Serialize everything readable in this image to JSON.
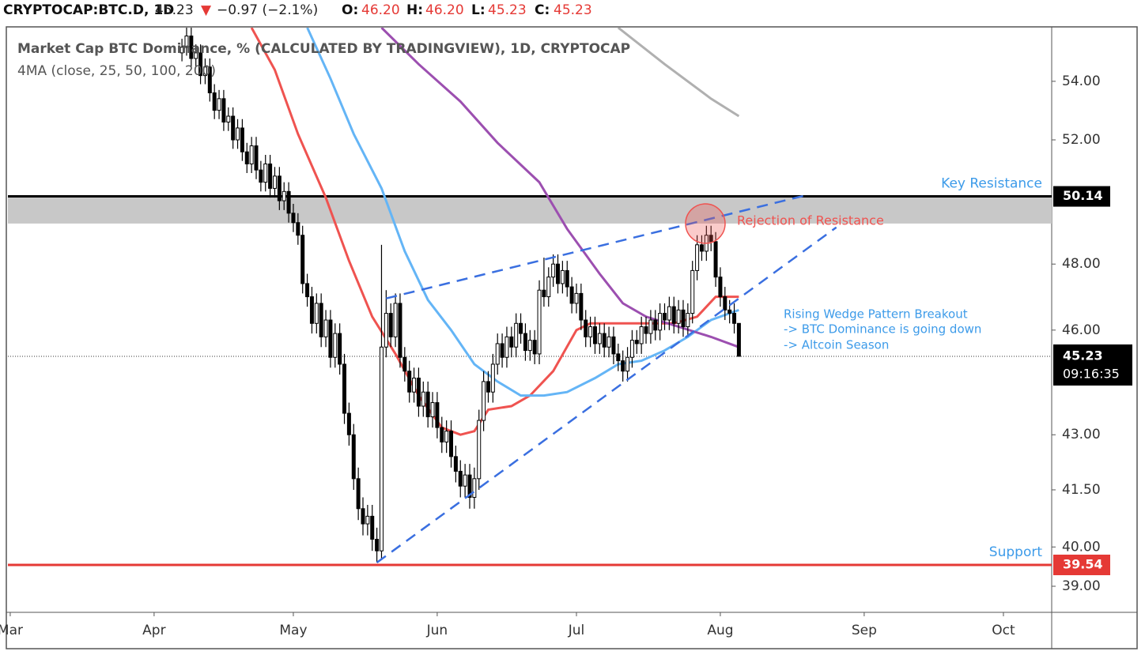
{
  "header": {
    "symbol": "CRYPTOCAP:BTC.D, 1D",
    "last": "45.23",
    "change": "−0.97 (−2.1%)",
    "open_label": "O:",
    "open": "46.20",
    "high_label": "H:",
    "high": "46.20",
    "low_label": "L:",
    "low": "45.23",
    "close_label": "C:",
    "close": "45.23"
  },
  "chart_data": {
    "type": "candlestick",
    "title": "Market Cap BTC Dominance, % (CALCULATED BY TRADINGVIEW), 1D, CRYPTOCAP",
    "subtitle": "4MA (close, 25, 50, 100, 200)",
    "log_scale": true,
    "xlim": [
      -0.5,
      224.4
    ],
    "ylim": [
      38.35,
      55.9
    ],
    "xticks": [
      {
        "value": 0,
        "label": "Mar"
      },
      {
        "value": 31,
        "label": "Apr"
      },
      {
        "value": 61,
        "label": "May"
      },
      {
        "value": 92,
        "label": "Jun"
      },
      {
        "value": 122,
        "label": "Jul"
      },
      {
        "value": 153,
        "label": "Aug"
      },
      {
        "value": 184,
        "label": "Sep"
      },
      {
        "value": 214,
        "label": "Oct"
      }
    ],
    "yticks": [
      {
        "value": 39,
        "label": "39.00"
      },
      {
        "value": 40,
        "label": "40.00"
      },
      {
        "value": 41.5,
        "label": "41.50"
      },
      {
        "value": 43,
        "label": "43.00"
      },
      {
        "value": 46,
        "label": "46.00"
      },
      {
        "value": 48,
        "label": "48.00"
      },
      {
        "value": 52,
        "label": "52.00"
      },
      {
        "value": 54,
        "label": "54.00"
      }
    ],
    "up_color": "#ffffff",
    "down_color": "#000000",
    "x": [
      37,
      38,
      39,
      40,
      41,
      42,
      43,
      44,
      45,
      46,
      47,
      48,
      49,
      50,
      51,
      52,
      53,
      54,
      55,
      56,
      57,
      58,
      59,
      60,
      61,
      62,
      63,
      64,
      65,
      66,
      67,
      68,
      69,
      70,
      71,
      72,
      73,
      74,
      75,
      76,
      77,
      78,
      79,
      80,
      81,
      82,
      83,
      84,
      85,
      86,
      87,
      88,
      89,
      90,
      91,
      92,
      93,
      94,
      95,
      96,
      97,
      98,
      99,
      100,
      101,
      102,
      103,
      104,
      105,
      106,
      107,
      108,
      109,
      110,
      111,
      112,
      113,
      114,
      115,
      116,
      117,
      118,
      119,
      120,
      121,
      122,
      123,
      124,
      125,
      126,
      127,
      128,
      129,
      130,
      131,
      132,
      133,
      134,
      135,
      136,
      137,
      138,
      139,
      140,
      141,
      142,
      143,
      144,
      145,
      146,
      147,
      148,
      149,
      150,
      151,
      152,
      153,
      154,
      155,
      156,
      157
    ],
    "open": [
      55.0,
      55.2,
      55.6,
      54.8,
      55.0,
      54.2,
      54.5,
      53.6,
      53.0,
      53.4,
      52.6,
      52.8,
      52.0,
      52.4,
      51.6,
      51.2,
      51.8,
      51.0,
      50.6,
      51.2,
      50.4,
      50.8,
      50.0,
      50.3,
      49.6,
      49.3,
      48.9,
      47.4,
      47.0,
      46.2,
      46.8,
      45.8,
      46.3,
      45.2,
      45.9,
      45.0,
      43.6,
      43.0,
      41.8,
      41.0,
      40.6,
      40.8,
      40.2,
      39.9,
      45.5,
      46.5,
      45.8,
      46.8,
      45.2,
      44.8,
      44.2,
      44.6,
      43.8,
      44.2,
      43.5,
      43.9,
      43.2,
      42.8,
      43.1,
      42.4,
      42.0,
      41.6,
      41.9,
      41.3,
      41.8,
      43.4,
      44.5,
      44.2,
      45.0,
      45.6,
      45.2,
      45.8,
      45.5,
      46.2,
      45.9,
      45.4,
      45.7,
      45.3,
      47.2,
      47.0,
      47.6,
      48.0,
      47.4,
      47.8,
      47.3,
      46.8,
      47.1,
      46.3,
      45.8,
      46.1,
      45.6,
      45.9,
      45.5,
      45.8,
      45.3,
      45.1,
      44.8,
      45.2,
      45.7,
      45.6,
      46.1,
      45.9,
      46.3,
      46.0,
      46.5,
      46.3,
      46.7,
      46.2,
      46.6,
      46.1,
      46.5,
      47.8,
      48.6,
      48.4,
      48.9,
      48.7,
      47.6,
      47.0,
      46.6,
      46.5,
      46.2
    ],
    "high": [
      55.5,
      55.9,
      55.9,
      55.3,
      55.3,
      54.8,
      54.8,
      53.9,
      53.7,
      53.7,
      53.1,
      53.1,
      52.7,
      52.7,
      51.9,
      52.1,
      52.1,
      51.3,
      51.5,
      51.5,
      51.1,
      51.1,
      50.6,
      50.6,
      49.9,
      49.6,
      49.2,
      47.7,
      47.3,
      47.1,
      47.1,
      46.6,
      46.6,
      46.2,
      46.2,
      45.3,
      43.9,
      43.3,
      42.1,
      41.3,
      41.1,
      41.1,
      40.5,
      48.6,
      47.2,
      46.8,
      47.1,
      47.1,
      45.5,
      45.1,
      44.9,
      44.9,
      44.5,
      44.5,
      44.2,
      44.2,
      43.5,
      43.4,
      43.4,
      42.7,
      42.3,
      42.2,
      42.2,
      42.1,
      43.7,
      44.8,
      44.8,
      45.3,
      45.9,
      45.9,
      46.1,
      46.1,
      46.5,
      46.5,
      46.2,
      46.0,
      46.0,
      47.5,
      48.2,
      47.9,
      48.3,
      48.3,
      48.1,
      48.1,
      47.6,
      47.4,
      47.4,
      46.6,
      46.4,
      46.4,
      46.2,
      46.2,
      46.1,
      46.1,
      45.6,
      45.4,
      45.5,
      46.0,
      46.0,
      46.4,
      46.4,
      46.6,
      46.6,
      46.8,
      46.8,
      47.0,
      47.0,
      46.9,
      46.9,
      46.8,
      48.1,
      48.9,
      48.9,
      49.2,
      49.2,
      49.0,
      47.9,
      47.3,
      46.9,
      46.8,
      46.2
    ],
    "low": [
      54.7,
      54.9,
      54.5,
      54.5,
      53.9,
      53.9,
      53.3,
      52.7,
      52.7,
      52.3,
      52.3,
      51.7,
      51.7,
      51.3,
      50.9,
      50.9,
      50.7,
      50.3,
      50.3,
      50.1,
      50.1,
      49.7,
      49.7,
      49.3,
      49.0,
      48.6,
      47.1,
      46.7,
      45.9,
      45.9,
      45.5,
      45.5,
      44.9,
      44.9,
      44.7,
      43.3,
      42.7,
      41.5,
      40.7,
      40.3,
      40.3,
      39.9,
      39.6,
      39.7,
      45.2,
      45.5,
      45.5,
      44.9,
      44.5,
      43.9,
      43.9,
      43.5,
      43.5,
      43.2,
      43.2,
      42.9,
      42.5,
      42.5,
      42.1,
      41.7,
      41.3,
      41.3,
      41.0,
      41.0,
      41.5,
      43.1,
      43.9,
      43.9,
      44.7,
      44.9,
      44.9,
      45.2,
      45.2,
      45.6,
      45.1,
      45.1,
      45.0,
      45.0,
      46.7,
      46.7,
      47.3,
      47.1,
      47.1,
      47.0,
      46.5,
      46.5,
      46.0,
      45.5,
      45.5,
      45.3,
      45.3,
      45.2,
      45.2,
      45.0,
      44.8,
      44.5,
      44.5,
      44.9,
      45.3,
      45.3,
      45.6,
      45.6,
      45.7,
      45.7,
      46.0,
      46.0,
      45.9,
      45.9,
      45.8,
      45.8,
      46.2,
      47.5,
      48.1,
      48.1,
      48.4,
      47.3,
      46.7,
      46.3,
      46.2,
      45.9,
      45.23
    ],
    "close": [
      55.2,
      55.6,
      54.8,
      55.0,
      54.2,
      54.5,
      53.6,
      53.0,
      53.4,
      52.6,
      52.8,
      52.0,
      52.4,
      51.6,
      51.2,
      51.8,
      51.0,
      50.6,
      51.2,
      50.4,
      50.8,
      50.0,
      50.3,
      49.6,
      49.3,
      48.9,
      47.4,
      47.0,
      46.2,
      46.8,
      45.8,
      46.3,
      45.2,
      45.9,
      45.0,
      43.6,
      43.0,
      41.8,
      41.0,
      40.6,
      40.8,
      40.2,
      39.9,
      45.5,
      46.5,
      45.8,
      46.8,
      45.2,
      44.8,
      44.2,
      44.6,
      43.8,
      44.2,
      43.5,
      43.9,
      43.2,
      42.8,
      43.1,
      42.4,
      42.0,
      41.6,
      41.9,
      41.3,
      41.8,
      43.4,
      44.5,
      44.2,
      45.0,
      45.6,
      45.2,
      45.8,
      45.5,
      46.2,
      45.9,
      45.4,
      45.7,
      45.3,
      47.2,
      47.0,
      47.6,
      48.0,
      47.4,
      47.8,
      47.3,
      46.8,
      47.1,
      46.3,
      45.8,
      46.1,
      45.6,
      45.9,
      45.5,
      45.8,
      45.3,
      45.1,
      44.8,
      45.2,
      45.7,
      45.6,
      46.1,
      45.9,
      46.3,
      46.0,
      46.5,
      46.3,
      46.7,
      46.2,
      46.6,
      46.1,
      46.5,
      47.8,
      48.6,
      48.4,
      48.9,
      48.7,
      47.6,
      47.0,
      46.6,
      46.5,
      46.2,
      45.23
    ],
    "moving_averages": [
      {
        "color": "#ef5350",
        "x": [
          52,
          57,
          62,
          68,
          73,
          78,
          83,
          88,
          93,
          97,
          100,
          103,
          108,
          112,
          117,
          122,
          125,
          131,
          137,
          143,
          148,
          152,
          157
        ],
        "values": [
          55.9,
          54.4,
          52.2,
          50.1,
          48.1,
          46.4,
          45.3,
          44.1,
          43.2,
          43.0,
          43.1,
          43.7,
          43.8,
          44.1,
          44.8,
          46.0,
          46.2,
          46.2,
          46.2,
          46.2,
          46.4,
          47.0,
          47.0
        ]
      },
      {
        "color": "#64b5f6",
        "x": [
          64,
          69,
          74,
          80,
          85,
          90,
          95,
          100,
          105,
          110,
          115,
          120,
          126,
          131,
          136,
          141,
          146,
          151,
          157
        ],
        "values": [
          55.9,
          54.1,
          52.2,
          50.4,
          48.4,
          46.9,
          46.0,
          45.0,
          44.5,
          44.1,
          44.1,
          44.2,
          44.6,
          45.0,
          45.1,
          45.4,
          45.8,
          46.3,
          46.6
        ]
      },
      {
        "color": "#9c4fb0",
        "x": [
          80,
          88,
          97,
          105,
          114,
          120,
          127,
          132,
          137,
          144,
          151,
          157
        ],
        "values": [
          55.9,
          54.6,
          53.3,
          51.9,
          50.6,
          49.1,
          47.7,
          46.8,
          46.4,
          46.1,
          45.8,
          45.5
        ]
      },
      {
        "color": "#b0b0b0",
        "x": [
          131,
          141,
          151,
          157
        ],
        "values": [
          55.9,
          54.6,
          53.4,
          52.8
        ]
      }
    ],
    "zone": {
      "from": 49.27,
      "to": 50.14,
      "color": "#c8c8c8"
    },
    "levels": [
      {
        "value": 50.14,
        "color": "#000000",
        "label": "Key Resistance"
      },
      {
        "value": 39.54,
        "color": "#e53935",
        "label": "Support"
      }
    ],
    "trendlines": {
      "color": "#3a6fe0",
      "lines": [
        {
          "x": [
            81,
            171
          ],
          "values": [
            46.95,
            50.16
          ]
        },
        {
          "x": [
            79,
            178
          ],
          "values": [
            39.6,
            49.15
          ]
        }
      ]
    },
    "last_price": 45.23,
    "countdown": "09:16:35",
    "annotations": {
      "rejection": "Rejection of Resistance",
      "wedge": [
        "Rising Wedge Pattern Breakout",
        "-> BTC Dominance is going down",
        "-> Altcoin Season"
      ]
    }
  }
}
